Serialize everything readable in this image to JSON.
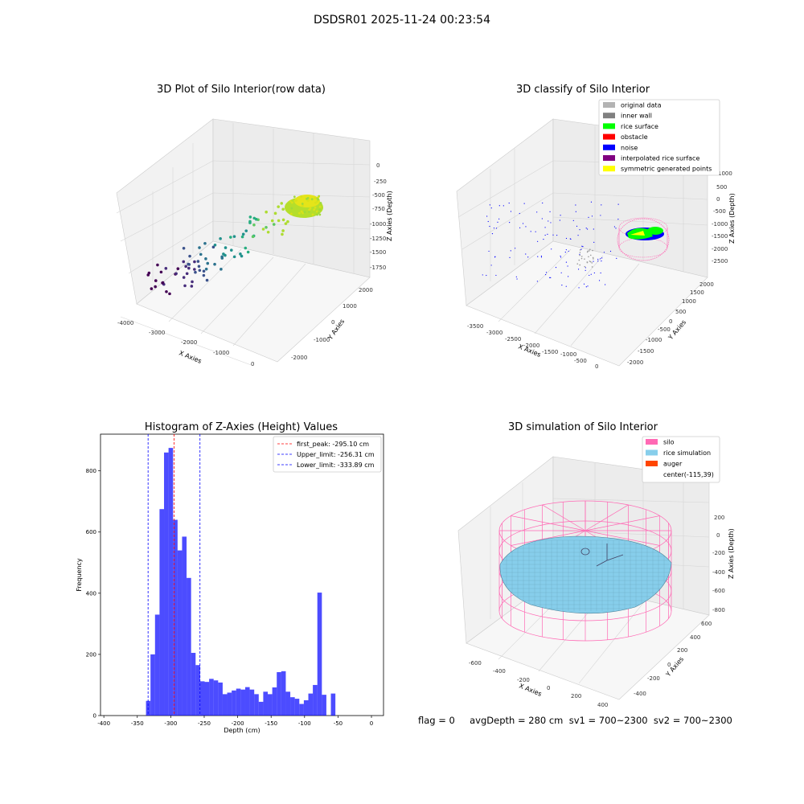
{
  "figure": {
    "title": "DSDSR01 2025-11-24 00:23:54"
  },
  "panels": {
    "raw": {
      "title": "3D Plot of Silo Interior(row data)",
      "xlabel": "X Axies",
      "ylabel": "Y Axies",
      "zlabel": "Z Axies (Depth)",
      "xticks": [
        "-4000",
        "-3000",
        "-2000",
        "-1000",
        "0"
      ],
      "yticks": [
        "-2000",
        "-1000",
        "0",
        "1000",
        "2000"
      ],
      "zticks": [
        "0",
        "-250",
        "-500",
        "-750",
        "-1000",
        "-1250",
        "-1500",
        "-1750"
      ]
    },
    "classify": {
      "title": "3D classify of Silo Interior",
      "xlabel": "X Axies",
      "ylabel": "Y Axies",
      "zlabel": "Z Axies (Depth)",
      "xticks": [
        "-3500",
        "-3000",
        "-2500",
        "-2000",
        "-1500",
        "-1000",
        "-500",
        "0"
      ],
      "yticks": [
        "-2000",
        "-1500",
        "-1000",
        "-500",
        "0",
        "500",
        "1000",
        "1500",
        "2000"
      ],
      "zticks": [
        "1000",
        "500",
        "0",
        "-500",
        "-1000",
        "-1500",
        "-2000",
        "-2500"
      ],
      "legend": [
        {
          "label": "original data",
          "color": "#b3b3b3"
        },
        {
          "label": "inner wall",
          "color": "#808080"
        },
        {
          "label": "rice surface",
          "color": "#00ff00"
        },
        {
          "label": "obstacle",
          "color": "#ff0000"
        },
        {
          "label": "noise",
          "color": "#0000ff"
        },
        {
          "label": "interpolated rice surface",
          "color": "#800080"
        },
        {
          "label": "symmetric generated points",
          "color": "#ffff00"
        }
      ]
    },
    "simulation": {
      "title": "3D simulation of Silo Interior",
      "xlabel": "X Axies",
      "ylabel": "Y Axies",
      "zlabel": "Z Axies (Depth)",
      "xticks": [
        "-600",
        "-400",
        "-200",
        "0",
        "200",
        "400"
      ],
      "yticks": [
        "-400",
        "-200",
        "0",
        "200",
        "400",
        "600"
      ],
      "zticks": [
        "200",
        "0",
        "-200",
        "-400",
        "-600",
        "-800"
      ],
      "legend": [
        {
          "label": "silo",
          "color": "#ff69b4"
        },
        {
          "label": "rice simulation",
          "color": "#87ceeb"
        },
        {
          "label": "auger",
          "color": "#ff4500"
        },
        {
          "label": "center(-115,39)",
          "color": ""
        }
      ]
    }
  },
  "chart_data": {
    "type": "bar",
    "title": "Histogram of Z-Axies (Height) Values",
    "xlabel": "Depth (cm)",
    "ylabel": "Frequency",
    "xlim": [
      -405,
      18
    ],
    "ylim": [
      0,
      920
    ],
    "xticks": [
      -400,
      -350,
      -300,
      -250,
      -200,
      -150,
      -100,
      -50,
      0
    ],
    "yticks": [
      0,
      200,
      400,
      600,
      800
    ],
    "bin_start": -337,
    "bin_width": 6.74,
    "values": [
      48,
      200,
      330,
      675,
      860,
      875,
      640,
      540,
      585,
      450,
      205,
      165,
      112,
      110,
      120,
      115,
      108,
      70,
      75,
      82,
      88,
      85,
      93,
      85,
      70,
      45,
      78,
      70,
      92,
      142,
      145,
      78,
      60,
      55,
      38,
      50,
      72,
      100,
      402,
      68,
      0,
      72
    ],
    "lines": [
      {
        "label": "first_peak: -295.10 cm",
        "x": -295.1,
        "color": "#ff0000"
      },
      {
        "label": "Upper_limit: -256.31 cm",
        "x": -256.31,
        "color": "#0000ff"
      },
      {
        "label": "Lower_limit: -333.89 cm",
        "x": -333.89,
        "color": "#0000ff"
      }
    ],
    "bar_color": "#0000ff"
  },
  "footer": {
    "text": "flag = 0     avgDepth = 280 cm  sv1 = 700~2300  sv2 = 700~2300"
  }
}
